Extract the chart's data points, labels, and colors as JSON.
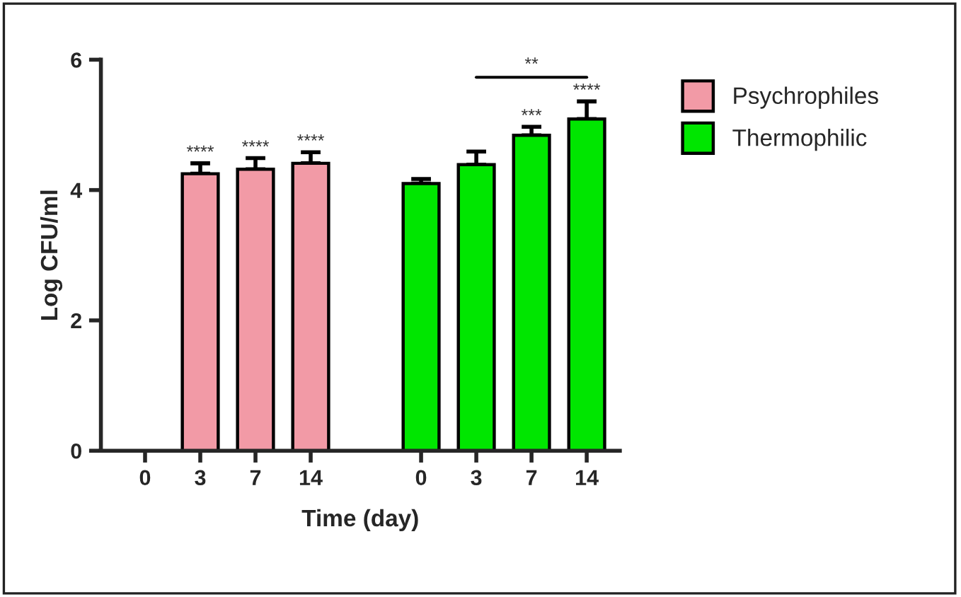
{
  "chart_data": {
    "type": "bar",
    "xlabel": "Time (day)",
    "ylabel": "Log CFU/ml",
    "categories": [
      "0",
      "3",
      "7",
      "14",
      null,
      "0",
      "3",
      "7",
      "14"
    ],
    "series": [
      {
        "name": "Psychrophiles",
        "color": "#f29aa6",
        "values": [
          null,
          4.25,
          4.32,
          4.41,
          null,
          null,
          null,
          null,
          null
        ],
        "errors": [
          null,
          0.16,
          0.17,
          0.17,
          null,
          null,
          null,
          null,
          null
        ],
        "value_labels": [
          null,
          "****",
          "****",
          "****",
          null,
          null,
          null,
          null,
          null
        ]
      },
      {
        "name": "Thermophilic",
        "color": "#00e600",
        "values": [
          null,
          null,
          null,
          null,
          null,
          4.1,
          4.39,
          4.84,
          5.09
        ],
        "errors": [
          null,
          null,
          null,
          null,
          null,
          0.07,
          0.2,
          0.13,
          0.27
        ],
        "value_labels": [
          null,
          null,
          null,
          null,
          null,
          null,
          null,
          "***",
          "****"
        ]
      }
    ],
    "annotations": [
      "**"
    ],
    "ylim": [
      0,
      6
    ],
    "yticks": [
      0,
      2,
      4,
      6
    ],
    "grid": false,
    "legend": "top right"
  }
}
